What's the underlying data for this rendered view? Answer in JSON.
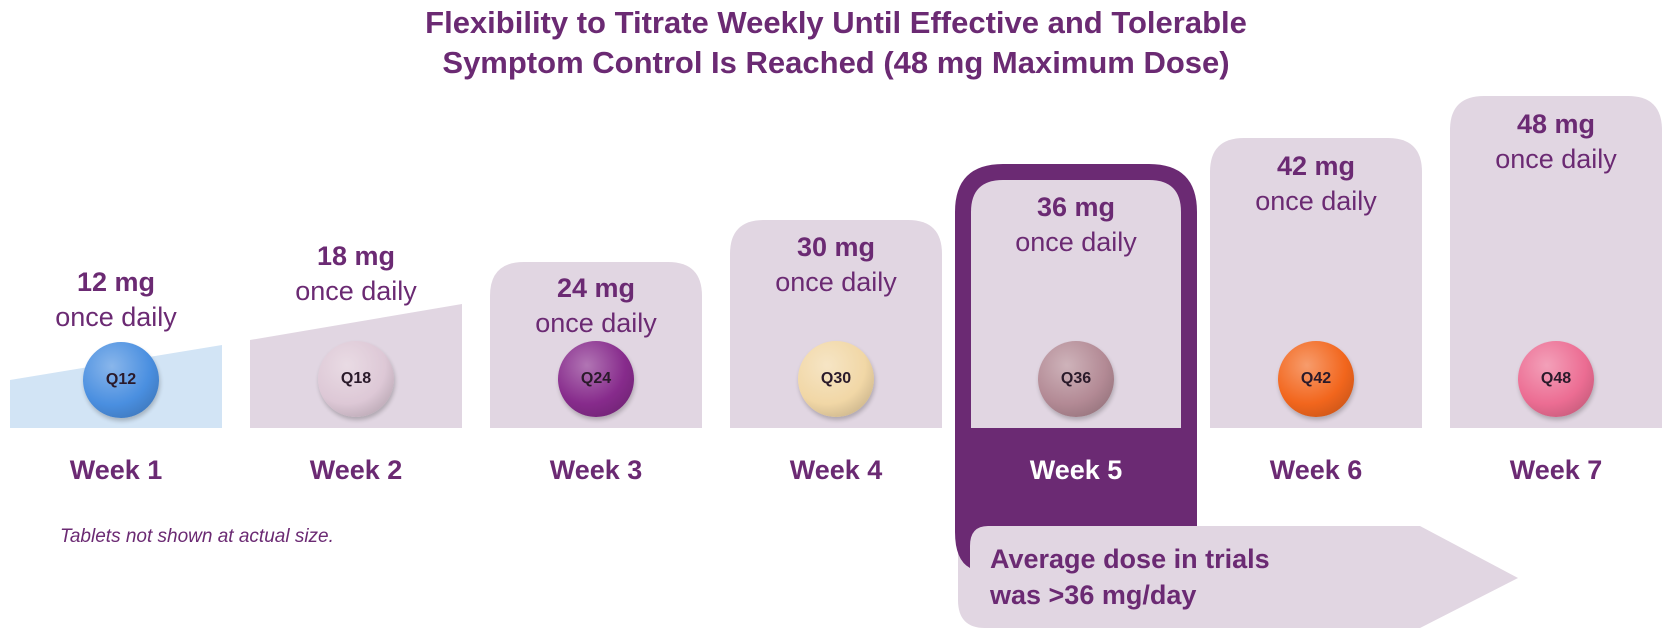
{
  "title_line1": "Flexibility to Titrate Weekly Until Effective and Tolerable",
  "title_line2": "Symptom Control Is Reached (48 mg Maximum Dose)",
  "weeks": [
    {
      "label": "Week 1",
      "dose": "12 mg",
      "frequency": "once daily",
      "tablet": "Q12",
      "tablet_color": "#4a8fe0"
    },
    {
      "label": "Week 2",
      "dose": "18 mg",
      "frequency": "once daily",
      "tablet": "Q18",
      "tablet_color": "#ddc8d6"
    },
    {
      "label": "Week 3",
      "dose": "24 mg",
      "frequency": "once daily",
      "tablet": "Q24",
      "tablet_color": "#872b8c"
    },
    {
      "label": "Week 4",
      "dose": "30 mg",
      "frequency": "once daily",
      "tablet": "Q30",
      "tablet_color": "#f1d7a6"
    },
    {
      "label": "Week 5",
      "dose": "36 mg",
      "frequency": "once daily",
      "tablet": "Q36",
      "tablet_color": "#b38a95"
    },
    {
      "label": "Week 6",
      "dose": "42 mg",
      "frequency": "once daily",
      "tablet": "Q42",
      "tablet_color": "#f2661d"
    },
    {
      "label": "Week 7",
      "dose": "48 mg",
      "frequency": "once daily",
      "tablet": "Q48",
      "tablet_color": "#ec6d93"
    }
  ],
  "highlighted_week": "Week 5",
  "footnote": "Tablets not shown at actual size.",
  "average_note_line1": "Average dose in trials",
  "average_note_line2": "was >36 mg/day",
  "colors": {
    "brand_purple": "#6b2a73",
    "panel_lavender": "#e1d6e2",
    "week1_blue": "#d2e4f5"
  }
}
